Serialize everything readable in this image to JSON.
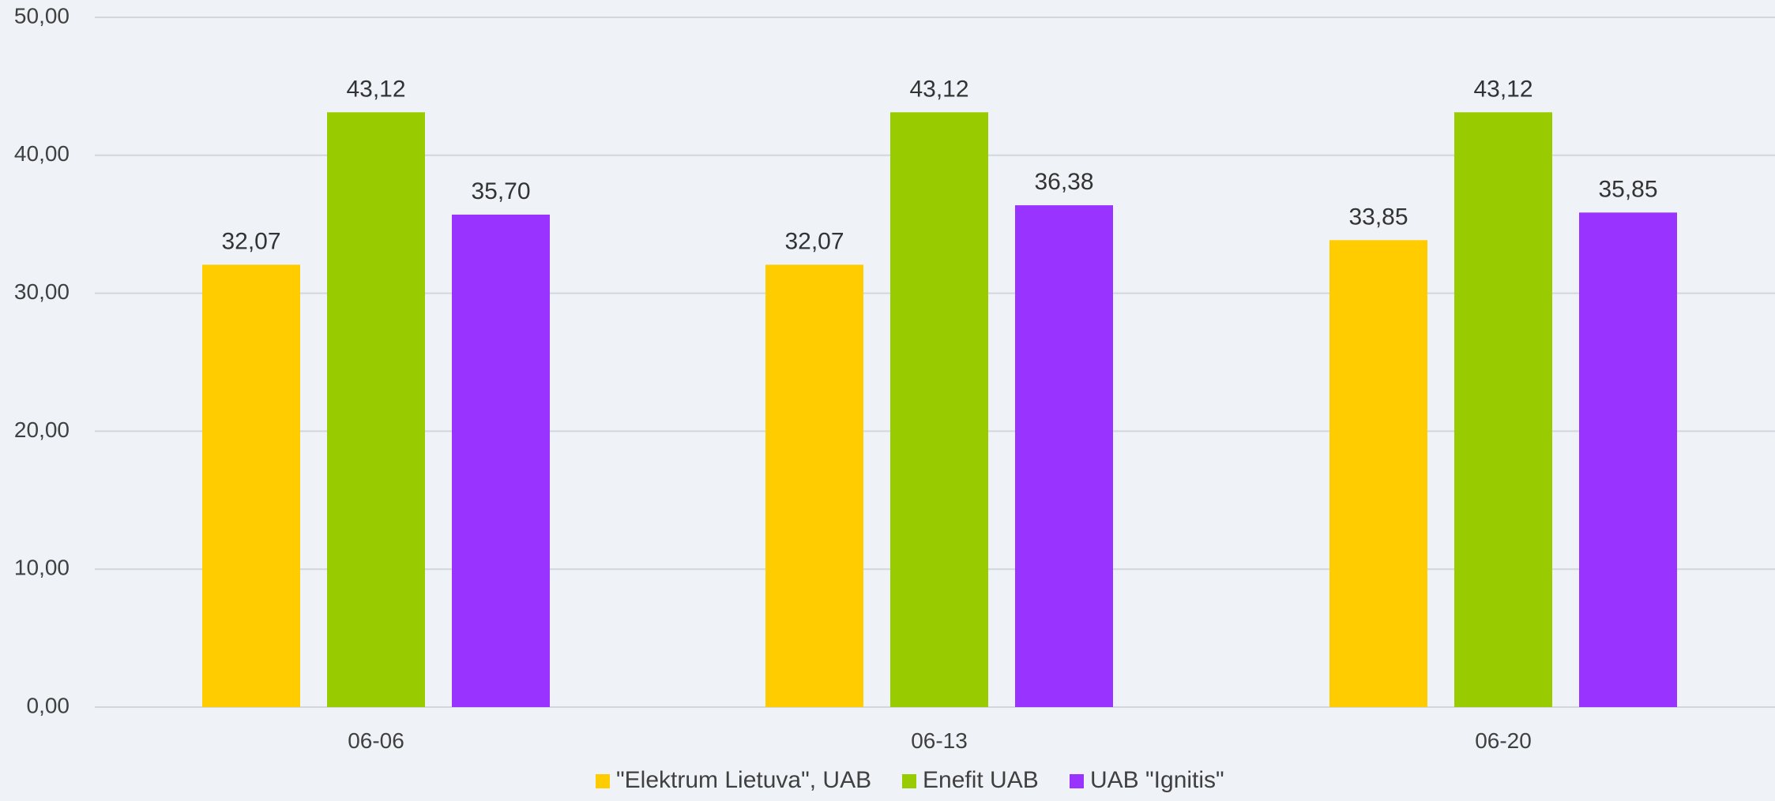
{
  "chart_data": {
    "type": "bar",
    "categories": [
      "06-06",
      "06-13",
      "06-20"
    ],
    "series": [
      {
        "name": "\"Elektrum Lietuva\", UAB",
        "color": "#ffcc00",
        "values": [
          32.07,
          32.07,
          33.85
        ],
        "labels": [
          "32,07",
          "32,07",
          "33,85"
        ]
      },
      {
        "name": "Enefit UAB",
        "color": "#99cc00",
        "values": [
          43.12,
          43.12,
          43.12
        ],
        "labels": [
          "43,12",
          "43,12",
          "43,12"
        ]
      },
      {
        "name": "UAB \"Ignitis\"",
        "color": "#9933ff",
        "values": [
          35.7,
          36.38,
          35.85
        ],
        "labels": [
          "35,70",
          "36,38",
          "35,85"
        ]
      }
    ],
    "ylim": [
      0,
      50
    ],
    "yticks": [
      0,
      10,
      20,
      30,
      40,
      50
    ],
    "ytick_labels": [
      "0,00",
      "10,00",
      "20,00",
      "30,00",
      "40,00",
      "50,00"
    ],
    "grid": true,
    "legend_position": "bottom",
    "title": "",
    "xlabel": "",
    "ylabel": ""
  }
}
